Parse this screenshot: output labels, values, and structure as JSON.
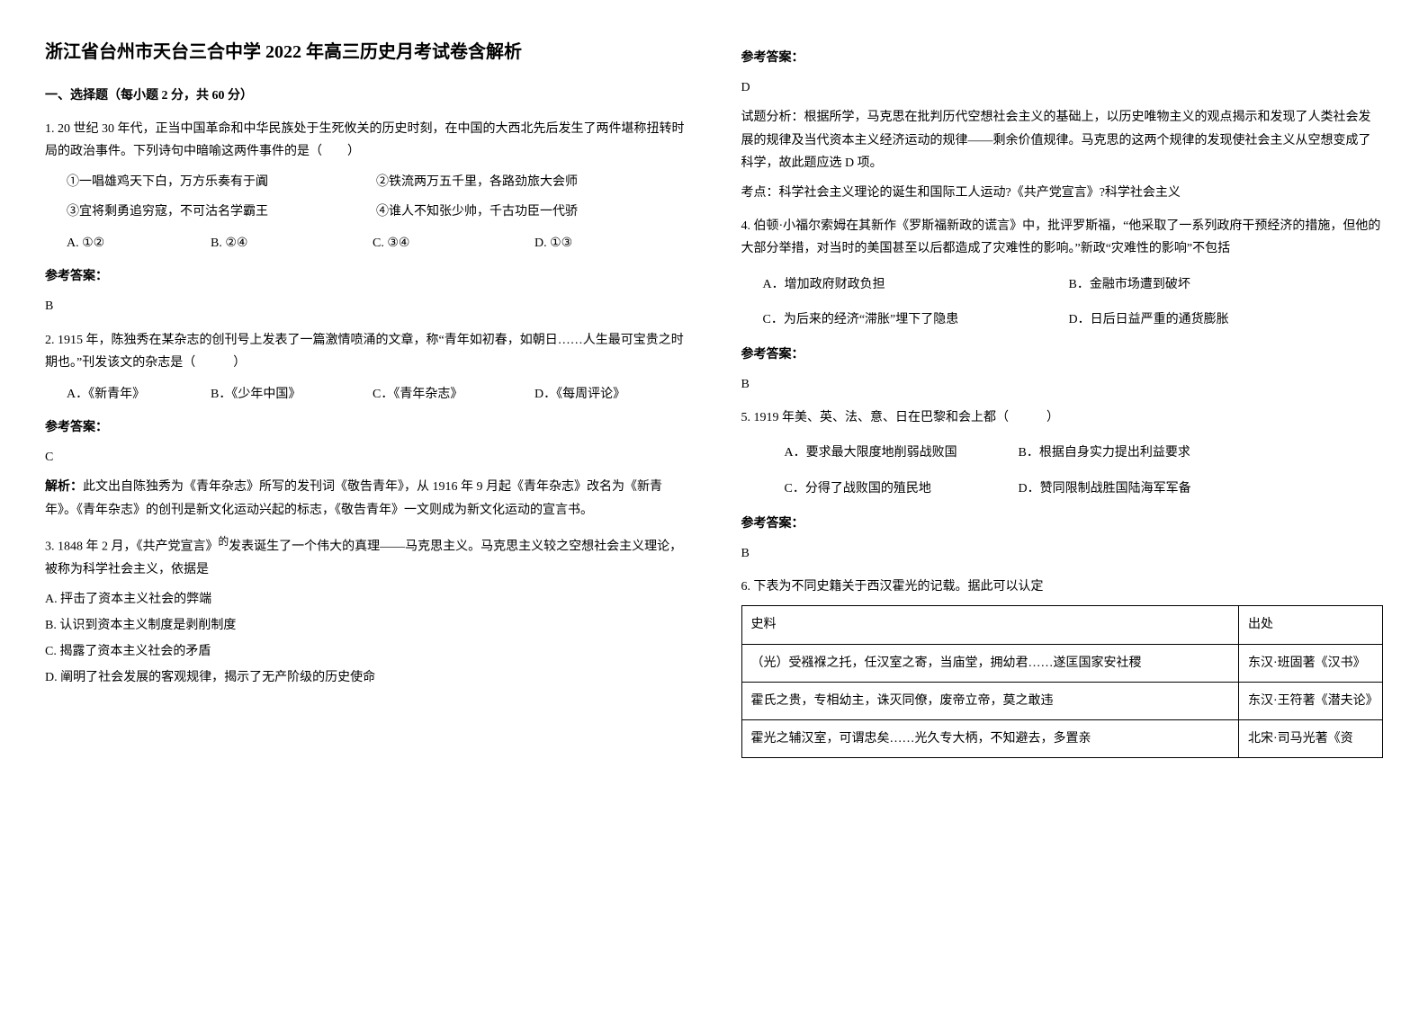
{
  "title": "浙江省台州市天台三合中学 2022 年高三历史月考试卷含解析",
  "section1_header": "一、选择题（每小题 2 分，共 60 分）",
  "q1": {
    "text": "1. 20 世纪 30 年代，正当中国革命和中华民族处于生死攸关的历史时刻，在中国的大西北先后发生了两件堪称扭转时局的政治事件。下列诗句中暗喻这两件事件的是（　　）",
    "opt1": "①一唱雄鸡天下白，万方乐奏有于阗",
    "opt2": "②铁流两万五千里，各路劲旅大会师",
    "opt3": "③宜将剩勇追穷寇，不可沽名学霸王",
    "opt4": "④谁人不知张少帅，千古功臣一代骄",
    "cA": "A. ①②",
    "cB": "B. ②④",
    "cC": "C. ③④",
    "cD": "D. ①③"
  },
  "ref_label": "参考答案：",
  "q1_ans": "B",
  "q2": {
    "text": "2. 1915 年，陈独秀在某杂志的创刊号上发表了一篇激情喷涌的文章，称“青年如初春，如朝日……人生最可宝贵之时期也。”刊发该文的杂志是（　　　）",
    "cA": "A．《新青年》",
    "cB": "B．《少年中国》",
    "cC": "C．《青年杂志》",
    "cD": "D．《每周评论》"
  },
  "q2_ans": "C",
  "q2_explain_label": "解析：",
  "q2_explain": "此文出自陈独秀为《青年杂志》所写的发刊词《敬告青年》，从 1916 年 9 月起《青年杂志》改名为《新青年》。《青年杂志》的创刊是新文化运动兴起的标志，《敬告青年》一文则成为新文化运动的宣言书。",
  "q3": {
    "text_a": "3. 1848 年 2 月，《共产党宣言》",
    "text_b": "发表诞生了一个伟大的真理——马克思主义。马克思主义较之空想社会主义理论，被称为科学社会主义，依据是",
    "sup": "的",
    "oA": "A. 抨击了资本主义社会的弊端",
    "oB": "B. 认识到资本主义制度是剥削制度",
    "oC": "C. 揭露了资本主义社会的矛盾",
    "oD": "D. 阐明了社会发展的客观规律，揭示了无产阶级的历史使命"
  },
  "q3_ans": "D",
  "q3_analysis": "试题分析：根据所学，马克思在批判历代空想社会主义的基础上，以历史唯物主义的观点揭示和发现了人类社会发展的规律及当代资本主义经济运动的规律——剩余价值规律。马克思的这两个规律的发现使社会主义从空想变成了科学，故此题应选 D 项。",
  "q3_kaodian": "考点：科学社会主义理论的诞生和国际工人运动?《共产党宣言》?科学社会主义",
  "q4": {
    "text": "4. 伯顿·小福尔索姆在其新作《罗斯福新政的谎言》中，批评罗斯福，“他采取了一系列政府干预经济的措施，但他的大部分举措，对当时的美国甚至以后都造成了灾难性的影响。”新政“灾难性的影响”不包括",
    "oA": "A．增加政府财政负担",
    "oB": "B．金融市场遭到破坏",
    "oC": "C．为后来的经济“滞胀”埋下了隐患",
    "oD": "D．日后日益严重的通货膨胀"
  },
  "q4_ans": "B",
  "q5": {
    "text": "5. 1919 年美、英、法、意、日在巴黎和会上都（　　　）",
    "oA": "A．要求最大限度地削弱战败国",
    "oB": "B．根据自身实力提出利益要求",
    "oC": "C．分得了战败国的殖民地",
    "oD": "D．赞同限制战胜国陆海军军备"
  },
  "q5_ans": "B",
  "q6": {
    "text": "6. 下表为不同史籍关于西汉霍光的记载。据此可以认定",
    "th1": "史料",
    "th2": "出处",
    "r1c1": "（光）受襁褓之托，任汉室之寄，当庙堂，拥幼君……遂匡国家安社稷",
    "r1c2": "东汉·班固著《汉书》",
    "r2c1": "霍氏之贵，专相幼主，诛灭同僚，废帝立帝，莫之敢违",
    "r2c2": "东汉·王符著《潜夫论》",
    "r3c1": "霍光之辅汉室，可谓忠矣……光久专大柄，不知避去，多置亲",
    "r3c2": "北宋·司马光著《资"
  }
}
